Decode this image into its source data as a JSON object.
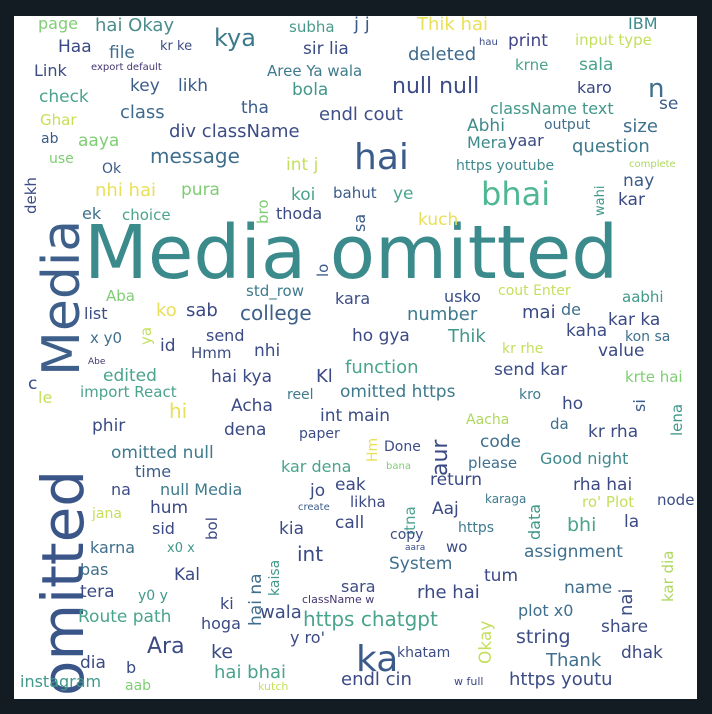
{
  "words": [
    {
      "text": "Media omitted",
      "color": "#3b8a8c"
    },
    {
      "text": "Media",
      "color": "#3d5f8a"
    },
    {
      "text": "omitted",
      "color": "#3a5688"
    },
    {
      "text": "hai",
      "color": "#3b5b8a"
    },
    {
      "text": "bhai",
      "color": "#4fb892"
    },
    {
      "text": "ka",
      "color": "#3b5b8a"
    },
    {
      "text": "null null",
      "color": "#3b4c86"
    },
    {
      "text": "message",
      "color": "#3f6f8d"
    },
    {
      "text": "kya",
      "color": "#3a7a8c"
    },
    {
      "text": "page",
      "color": "#7fcd73"
    },
    {
      "text": "hai Okay",
      "color": "#4a8d8c"
    },
    {
      "text": "j j",
      "color": "#3b5b8a"
    },
    {
      "text": "Thik hai",
      "color": "#e9e05a"
    },
    {
      "text": "IBM",
      "color": "#3f8a8d"
    },
    {
      "text": "subha",
      "color": "#4a9a8c"
    },
    {
      "text": "kr ke",
      "color": "#3c4d85"
    },
    {
      "text": "Haa",
      "color": "#3b4a84"
    },
    {
      "text": "file",
      "color": "#3f6f8d"
    },
    {
      "text": "sir lia",
      "color": "#3c4d85"
    },
    {
      "text": "deleted",
      "color": "#3d6a8d"
    },
    {
      "text": "print",
      "color": "#40458a"
    },
    {
      "text": "input type",
      "color": "#c4df5d"
    },
    {
      "text": "hau",
      "color": "#3b4a84"
    },
    {
      "text": "Link",
      "color": "#3c4d85"
    },
    {
      "text": "export default",
      "color": "#44356f"
    },
    {
      "text": "Aree Ya wala",
      "color": "#3e7a8c"
    },
    {
      "text": "krne",
      "color": "#4aa38c"
    },
    {
      "text": "sala",
      "color": "#4aa38c"
    },
    {
      "text": "key",
      "color": "#3b5d8a"
    },
    {
      "text": "likh",
      "color": "#3b5d8a"
    },
    {
      "text": "bola",
      "color": "#41988b"
    },
    {
      "text": "karo",
      "color": "#3a4986"
    },
    {
      "text": "n",
      "color": "#3f6f8d"
    },
    {
      "text": "check",
      "color": "#4aa38c"
    },
    {
      "text": "tha",
      "color": "#3b5d8a"
    },
    {
      "text": "se",
      "color": "#3b5b8a"
    },
    {
      "text": "className text",
      "color": "#41988b"
    },
    {
      "text": "Ghar",
      "color": "#c7df55"
    },
    {
      "text": "class",
      "color": "#3d6a8d"
    },
    {
      "text": "endl cout",
      "color": "#3f4f87"
    },
    {
      "text": "Abhi",
      "color": "#3f8a8d"
    },
    {
      "text": "output",
      "color": "#3f6f8d"
    },
    {
      "text": "size",
      "color": "#3f6f8d"
    },
    {
      "text": "ab",
      "color": "#3b5b8a"
    },
    {
      "text": "aaya",
      "color": "#7fcd73"
    },
    {
      "text": "div className",
      "color": "#3c4d85"
    },
    {
      "text": "Mera",
      "color": "#3f8a8d"
    },
    {
      "text": "yaar",
      "color": "#3b4a84"
    },
    {
      "text": "question",
      "color": "#3e7a8c"
    },
    {
      "text": "use",
      "color": "#7fcd73"
    },
    {
      "text": "Ok",
      "color": "#3b5b8a"
    },
    {
      "text": "int j",
      "color": "#c4df5d"
    },
    {
      "text": "https youtube",
      "color": "#3f8a8d"
    },
    {
      "text": "complete",
      "color": "#aed85e"
    },
    {
      "text": "nay",
      "color": "#3b5b8a"
    },
    {
      "text": "dekh",
      "color": "#3c4d85"
    },
    {
      "text": "nhi hai",
      "color": "#e9e05a"
    },
    {
      "text": "pura",
      "color": "#7fcd73"
    },
    {
      "text": "koi",
      "color": "#4aa38c"
    },
    {
      "text": "bahut",
      "color": "#3b5b8a"
    },
    {
      "text": "ye",
      "color": "#4aa38c"
    },
    {
      "text": "kar",
      "color": "#3b4a84"
    },
    {
      "text": "wahi",
      "color": "#41988b"
    },
    {
      "text": "ek",
      "color": "#3f6f8d"
    },
    {
      "text": "choice",
      "color": "#4aa38c"
    },
    {
      "text": "bro",
      "color": "#7fcd73"
    },
    {
      "text": "thoda",
      "color": "#3b4a84"
    },
    {
      "text": "sa",
      "color": "#3b5b8a"
    },
    {
      "text": "kuch",
      "color": "#e9e05a"
    },
    {
      "text": "lo",
      "color": "#3b5b8a"
    },
    {
      "text": "Aba",
      "color": "#7fcd73"
    },
    {
      "text": "std_row",
      "color": "#3e7a8c"
    },
    {
      "text": "cout Enter",
      "color": "#c4df5d"
    },
    {
      "text": "aabhi",
      "color": "#41988b"
    },
    {
      "text": "kara",
      "color": "#3c4d85"
    },
    {
      "text": "usko",
      "color": "#3c4d85"
    },
    {
      "text": "list",
      "color": "#3c4d85"
    },
    {
      "text": "ko",
      "color": "#e9e05a"
    },
    {
      "text": "sab",
      "color": "#3b4a84"
    },
    {
      "text": "college",
      "color": "#3d5f8a"
    },
    {
      "text": "number",
      "color": "#3e7a8c"
    },
    {
      "text": "mai",
      "color": "#3b4a84"
    },
    {
      "text": "de",
      "color": "#3f6f8d"
    },
    {
      "text": "kar ka",
      "color": "#3b4a84"
    },
    {
      "text": "ya",
      "color": "#c4df5d"
    },
    {
      "text": "x y0",
      "color": "#3f6f8d"
    },
    {
      "text": "id",
      "color": "#3b4a84"
    },
    {
      "text": "send",
      "color": "#3b4a84"
    },
    {
      "text": "Hmm",
      "color": "#3c4d85"
    },
    {
      "text": "nhi",
      "color": "#3c4d85"
    },
    {
      "text": "ho gya",
      "color": "#3b4a84"
    },
    {
      "text": "Thik",
      "color": "#41988b"
    },
    {
      "text": "kaha",
      "color": "#3c4d85"
    },
    {
      "text": "kon sa",
      "color": "#3f6f8d"
    },
    {
      "text": "Abe",
      "color": "#44356f"
    },
    {
      "text": "kr rhe",
      "color": "#c4df5d"
    },
    {
      "text": "value",
      "color": "#3b4a84"
    },
    {
      "text": "function",
      "color": "#4aa38c"
    },
    {
      "text": "send kar",
      "color": "#3c4d85"
    },
    {
      "text": "edited",
      "color": "#4aa38c"
    },
    {
      "text": "hai kya",
      "color": "#3b4a84"
    },
    {
      "text": "Kl",
      "color": "#3b4a84"
    },
    {
      "text": "krte hai",
      "color": "#7fcd73"
    },
    {
      "text": "c",
      "color": "#3b4a84"
    },
    {
      "text": "import React",
      "color": "#4aa38c"
    },
    {
      "text": "omitted https",
      "color": "#3e7a8c"
    },
    {
      "text": "kro",
      "color": "#3e7a8c"
    },
    {
      "text": "le",
      "color": "#c4df5d"
    },
    {
      "text": "reel",
      "color": "#3e7a8c"
    },
    {
      "text": "hi",
      "color": "#e9e05a"
    },
    {
      "text": "Acha",
      "color": "#3b4a84"
    },
    {
      "text": "int main",
      "color": "#3c4d85"
    },
    {
      "text": "ho",
      "color": "#3b4a84"
    },
    {
      "text": "si",
      "color": "#3b5b8a"
    },
    {
      "text": "lena",
      "color": "#41988b"
    },
    {
      "text": "aur",
      "color": "#3b4a84"
    },
    {
      "text": "phir",
      "color": "#3b4a84"
    },
    {
      "text": "dena",
      "color": "#3b4a84"
    },
    {
      "text": "paper",
      "color": "#3c4d85"
    },
    {
      "text": "Aacha",
      "color": "#aed85e"
    },
    {
      "text": "da",
      "color": "#3f6f8d"
    },
    {
      "text": "kr rha",
      "color": "#3c4d85"
    },
    {
      "text": "code",
      "color": "#3f6f8d"
    },
    {
      "text": "Hm",
      "color": "#e9e05a"
    },
    {
      "text": "Done",
      "color": "#3c4d85"
    },
    {
      "text": "omitted null",
      "color": "#3e7a8c"
    },
    {
      "text": "Good night",
      "color": "#3f8a8d"
    },
    {
      "text": "time",
      "color": "#3b5b8a"
    },
    {
      "text": "bana",
      "color": "#7fcd73"
    },
    {
      "text": "please",
      "color": "#3f6f8d"
    },
    {
      "text": "kar dena",
      "color": "#4aa38c"
    },
    {
      "text": "jo",
      "color": "#3b4a84"
    },
    {
      "text": "return",
      "color": "#3b4a84"
    },
    {
      "text": "rha hai",
      "color": "#3b4a84"
    },
    {
      "text": "na",
      "color": "#3c4d85"
    },
    {
      "text": "null Media",
      "color": "#3e7a8c"
    },
    {
      "text": "eak",
      "color": "#3b4a84"
    },
    {
      "text": "likha",
      "color": "#3b4a84"
    },
    {
      "text": "itna",
      "color": "#4aa38c"
    },
    {
      "text": "data",
      "color": "#41988b"
    },
    {
      "text": "karaga",
      "color": "#3e7a8c"
    },
    {
      "text": "ro' Plot",
      "color": "#c4df5d"
    },
    {
      "text": "node",
      "color": "#3c4d85"
    },
    {
      "text": "hum",
      "color": "#3b4a84"
    },
    {
      "text": "jana",
      "color": "#c4df5d"
    },
    {
      "text": "create",
      "color": "#3b5b8a"
    },
    {
      "text": "Aaj",
      "color": "#3b4a84"
    },
    {
      "text": "bhi",
      "color": "#4aa38c"
    },
    {
      "text": "sid",
      "color": "#3b4a84"
    },
    {
      "text": "bol",
      "color": "#3b4a84"
    },
    {
      "text": "kia",
      "color": "#3b4a84"
    },
    {
      "text": "call",
      "color": "#3b4a84"
    },
    {
      "text": "https",
      "color": "#3e7a8c"
    },
    {
      "text": "la",
      "color": "#3b4a84"
    },
    {
      "text": "karna",
      "color": "#3f6f8d"
    },
    {
      "text": "x0 x",
      "color": "#41988b"
    },
    {
      "text": "int",
      "color": "#3b4a84"
    },
    {
      "text": "copy",
      "color": "#3c4d85"
    },
    {
      "text": "aara",
      "color": "#3c4d85"
    },
    {
      "text": "wo",
      "color": "#3b4a84"
    },
    {
      "text": "assignment",
      "color": "#3f6f8d"
    },
    {
      "text": "hai na",
      "color": "#3f6f8d"
    },
    {
      "text": "kaisa",
      "color": "#41988b"
    },
    {
      "text": "bas",
      "color": "#3f6f8d"
    },
    {
      "text": "Kal",
      "color": "#3b4a84"
    },
    {
      "text": "System",
      "color": "#3f6f8d"
    },
    {
      "text": "tum",
      "color": "#3b4a84"
    },
    {
      "text": "nai",
      "color": "#3c4d85"
    },
    {
      "text": "kar dia",
      "color": "#aed85e"
    },
    {
      "text": "name",
      "color": "#3f6f8d"
    },
    {
      "text": "tera",
      "color": "#3b4a84"
    },
    {
      "text": "y0 y",
      "color": "#41988b"
    },
    {
      "text": "sara",
      "color": "#3c4d85"
    },
    {
      "text": "rhe hai",
      "color": "#3b4a84"
    },
    {
      "text": "ki",
      "color": "#3b4a84"
    },
    {
      "text": "className w",
      "color": "#44356f"
    },
    {
      "text": "wala",
      "color": "#3c4d85"
    },
    {
      "text": "Route path",
      "color": "#4aa38c"
    },
    {
      "text": "hoga",
      "color": "#3b4a84"
    },
    {
      "text": "https chatgpt",
      "color": "#4aa38c"
    },
    {
      "text": "plot x0",
      "color": "#3f6f8d"
    },
    {
      "text": "share",
      "color": "#3c4d85"
    },
    {
      "text": "Ara",
      "color": "#3b4a84"
    },
    {
      "text": "y ro'",
      "color": "#3b4a84"
    },
    {
      "text": "Okay",
      "color": "#c4df5d"
    },
    {
      "text": "string",
      "color": "#3c4d85"
    },
    {
      "text": "dia",
      "color": "#3b4a84"
    },
    {
      "text": "ke",
      "color": "#3b4a84"
    },
    {
      "text": "khatam",
      "color": "#3c4d85"
    },
    {
      "text": "Thank",
      "color": "#3f6f8d"
    },
    {
      "text": "dhak",
      "color": "#3b4a84"
    },
    {
      "text": "b",
      "color": "#3b4a84"
    },
    {
      "text": "hai bhai",
      "color": "#4aa38c"
    },
    {
      "text": "instagram",
      "color": "#41988b"
    },
    {
      "text": "aab",
      "color": "#7fcd73"
    },
    {
      "text": "kutch",
      "color": "#c4df5d"
    },
    {
      "text": "endl cin",
      "color": "#3b4a84"
    },
    {
      "text": "w full",
      "color": "#3b4a84"
    },
    {
      "text": "https youtu",
      "color": "#3c4d85"
    }
  ]
}
